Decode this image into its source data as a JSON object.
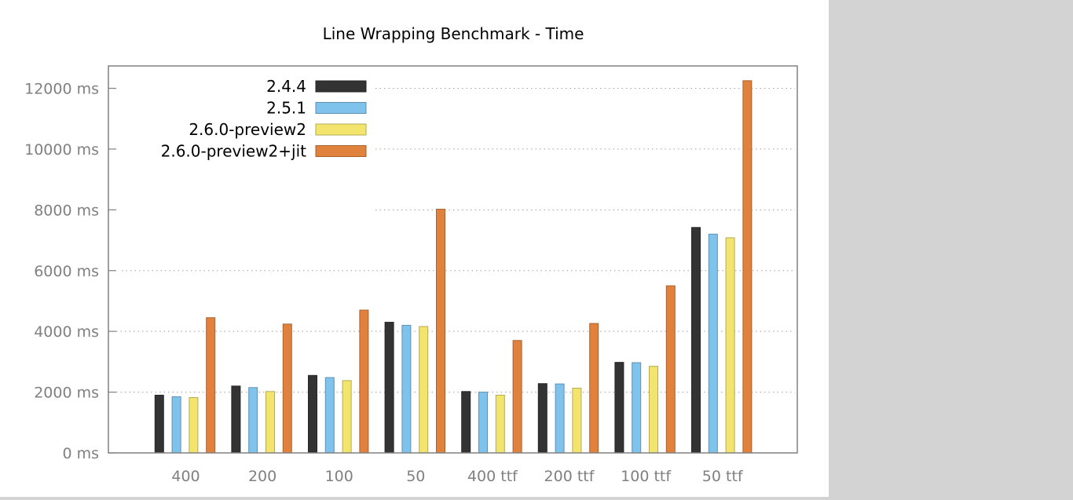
{
  "chart_data": {
    "type": "bar",
    "title": "Line Wrapping Benchmark - Time",
    "xlabel": "",
    "ylabel": "",
    "ylim": [
      0,
      12000
    ],
    "yticks": [
      0,
      2000,
      4000,
      6000,
      8000,
      10000,
      12000
    ],
    "ytick_labels": [
      "0 ms",
      "2000 ms",
      "4000 ms",
      "6000 ms",
      "8000 ms",
      "10000 ms",
      "12000 ms"
    ],
    "categories": [
      "400",
      "200",
      "100",
      "50",
      "400 ttf",
      "200 ttf",
      "100 ttf",
      "50 ttf"
    ],
    "grid": "horizontal dotted",
    "legend_position": "top-left",
    "series": [
      {
        "name": "2.4.4",
        "color": "#333333",
        "values": [
          1900,
          2200,
          2550,
          4300,
          2020,
          2280,
          2980,
          7420
        ]
      },
      {
        "name": "2.5.1",
        "color": "#7fc3ec",
        "values": [
          1850,
          2150,
          2480,
          4200,
          2000,
          2270,
          2970,
          7200
        ]
      },
      {
        "name": "2.6.0-preview2",
        "color": "#f3e46e",
        "values": [
          1820,
          2020,
          2380,
          4160,
          1900,
          2130,
          2850,
          7080
        ]
      },
      {
        "name": "2.6.0-preview2+jit",
        "color": "#e0823d",
        "values": [
          4450,
          4240,
          4700,
          8020,
          3700,
          4260,
          5500,
          12250
        ]
      }
    ]
  }
}
